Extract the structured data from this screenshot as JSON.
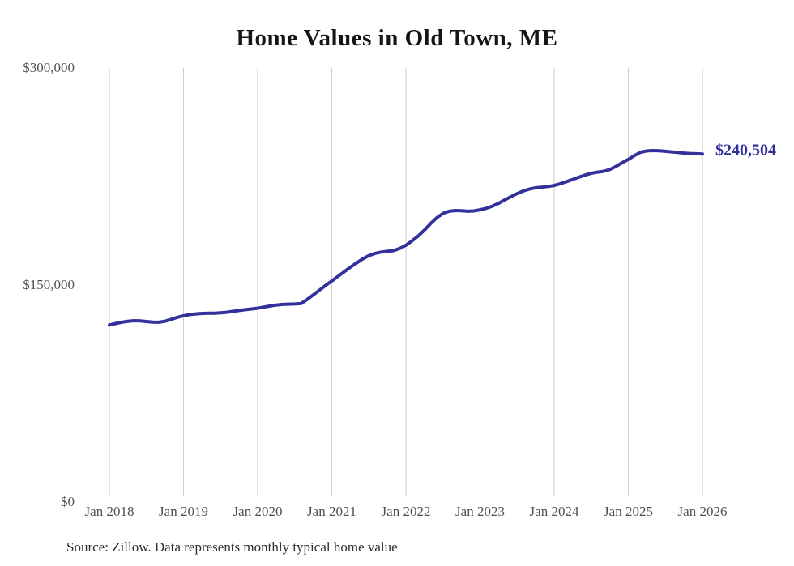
{
  "title": "Home Values in Old Town, ME",
  "source_note": "Source: Zillow. Data represents monthly typical home value",
  "end_label": "$240,504",
  "colors": {
    "line": "#32309b",
    "end_label": "#322e9e",
    "grid": "#cdcdcd",
    "axis_text": "#4f4f4f",
    "title_text": "#151515",
    "background": "#ffffff"
  },
  "chart_data": {
    "type": "line",
    "title": "Home Values in Old Town, ME",
    "xlabel": "",
    "ylabel": "",
    "ylim": [
      0,
      300000
    ],
    "grid": "vertical-only",
    "legend": "none",
    "y_tick_labels": [
      "$0",
      "$150,000",
      "$300,000"
    ],
    "y_tick_values": [
      0,
      150000,
      300000
    ],
    "x_tick_labels": [
      "Jan 2018",
      "Jan 2019",
      "Jan 2020",
      "Jan 2021",
      "Jan 2022",
      "Jan 2023",
      "Jan 2024",
      "Jan 2025",
      "Jan 2026"
    ],
    "x_start_month": "2018-01",
    "x_end_month": "2026-01",
    "end_value": 240504,
    "series": [
      {
        "name": "Monthly typical home value",
        "values": [
          122400,
          123400,
          124300,
          125000,
          125400,
          125200,
          124800,
          124400,
          124300,
          125000,
          126300,
          127700,
          128800,
          129600,
          130100,
          130400,
          130500,
          130600,
          130800,
          131200,
          131800,
          132400,
          133000,
          133500,
          134000,
          134800,
          135500,
          136200,
          136600,
          136800,
          136900,
          137200,
          140000,
          143200,
          146500,
          149800,
          152800,
          156000,
          159200,
          162300,
          165200,
          168000,
          170300,
          171900,
          172800,
          173300,
          173800,
          175300,
          177500,
          180500,
          184000,
          188000,
          192500,
          196500,
          199500,
          201000,
          201500,
          201300,
          201000,
          201200,
          202000,
          203000,
          204500,
          206500,
          208800,
          211000,
          213200,
          215000,
          216300,
          217200,
          217600,
          218100,
          218800,
          220000,
          221500,
          223000,
          224500,
          226000,
          227200,
          228000,
          228600,
          229800,
          232000,
          234500,
          236800,
          239500,
          241800,
          242700,
          242900,
          242800,
          242400,
          242000,
          241600,
          241200,
          240900,
          240700,
          240504
        ]
      }
    ]
  }
}
